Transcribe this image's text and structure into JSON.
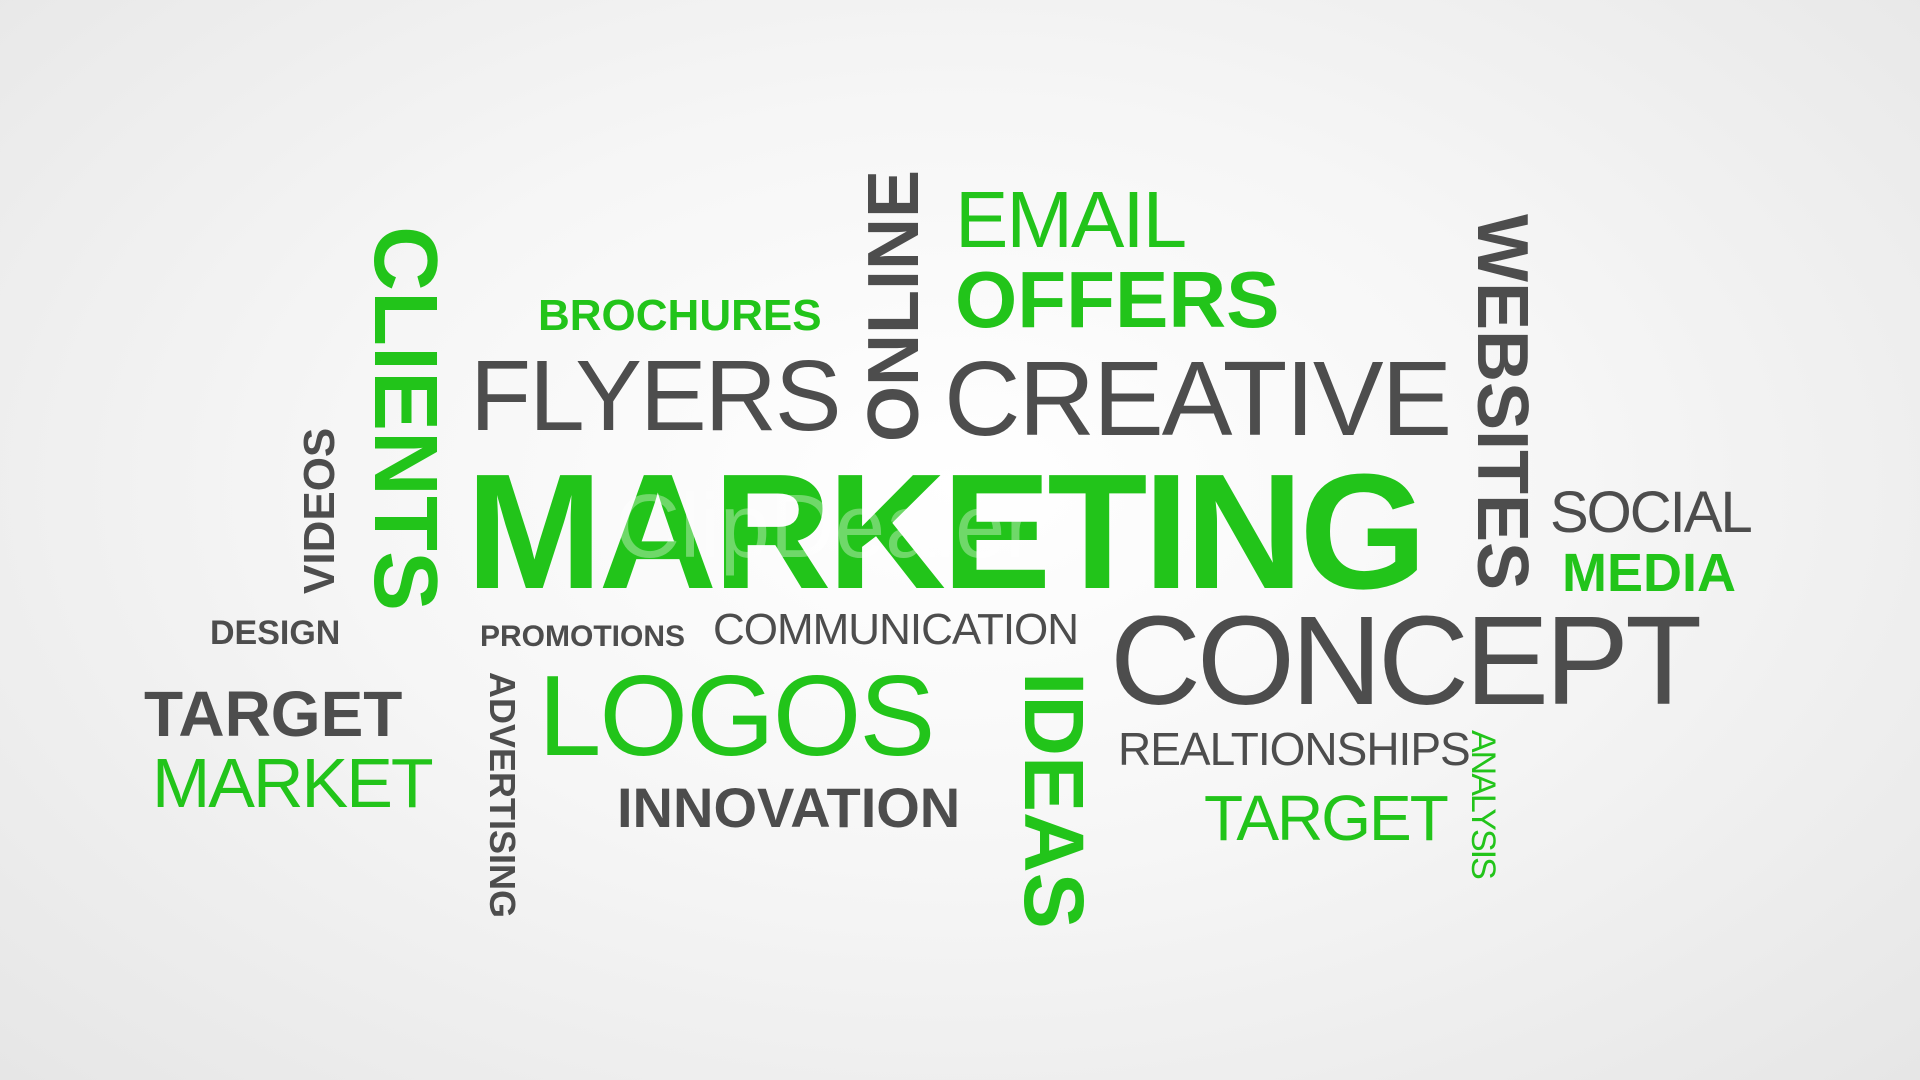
{
  "words": {
    "marketing": "MARKETING",
    "creative": "CREATIVE",
    "concept": "CONCEPT",
    "flyers": "FLYERS",
    "logos": "LOGOS",
    "offers": "OFFERS",
    "email": "EMAIL",
    "online": "ONLINE",
    "brochures": "BROCHURES",
    "websites": "WEBSITES",
    "social": "SOCIAL",
    "media": "MEDIA",
    "clients": "CLIENTS",
    "videos": "VIDEOS",
    "design": "DESIGN",
    "target_left": "TARGET",
    "market": "MARKET",
    "promotions": "PROMOTIONS",
    "communication": "COMMUNICATION",
    "advertising": "ADVERTISING",
    "innovation": "INNOVATION",
    "ideas": "IDEAS",
    "realtionships": "REALTIONSHIPS",
    "target_right": "TARGET",
    "analysis": "ANALYSIS"
  },
  "watermark": "ClipDealer",
  "colors": {
    "green": "#22c41a",
    "dark_gray": "#4d4d4d",
    "background": "#f4f4f4"
  }
}
